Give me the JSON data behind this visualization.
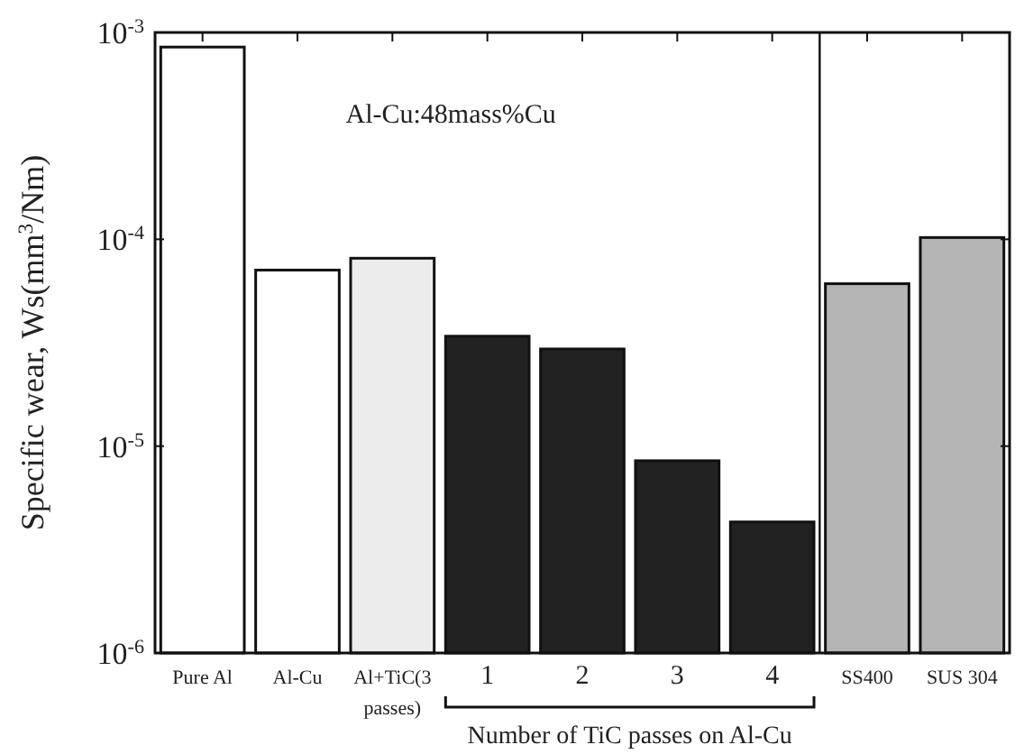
{
  "chart_data": {
    "type": "bar",
    "ylabel": "Specific wear, Ws(mm$^{3}$/Nm)",
    "xlabel": "Number of TiC passes on Al-Cu",
    "categories": [
      "Pure Al",
      "Al-Cu",
      "Al+TiC(3 passes)",
      "1",
      "2",
      "3",
      "4",
      "SS400",
      "SUS 304"
    ],
    "values": [
      0.00085,
      7.1e-05,
      8.1e-05,
      3.4e-05,
      2.95e-05,
      8.5e-06,
      4.3e-06,
      6.1e-05,
      0.000102
    ],
    "colors": [
      "#ffffff",
      "#ffffff",
      "#ececec",
      "#222222",
      "#222222",
      "#222222",
      "#222222",
      "#b4b4b4",
      "#b4b4b4"
    ],
    "log": true,
    "ylim": [
      1e-06,
      0.001
    ],
    "yticks": [
      {
        "value": 1e-06,
        "label": "10$^{-6}$"
      },
      {
        "value": 1e-05,
        "label": "10$^{-5}$"
      },
      {
        "value": 0.0001,
        "label": "10$^{-4}$"
      },
      {
        "value": 0.001,
        "label": "10$^{-3}$"
      }
    ],
    "annotations": [
      "Al-Cu:48mass%Cu"
    ],
    "grid": false
  }
}
